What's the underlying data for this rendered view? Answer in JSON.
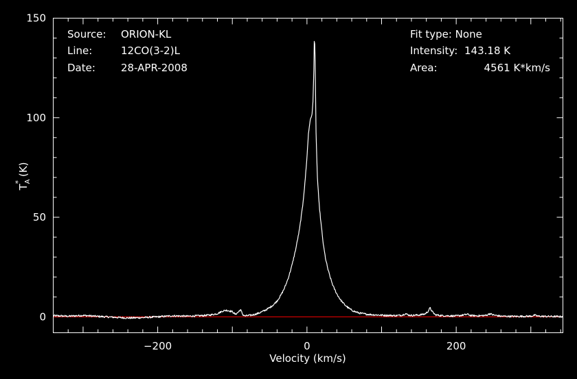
{
  "header": {
    "source_label": "Source:",
    "source_value": "ORION-KL",
    "line_label": "Line:",
    "line_value": "12CO(3-2)L",
    "date_label": "Date:",
    "date_value": "28-APR-2008",
    "fit_type": "Fit type: None",
    "intensity_label": "Intensity:",
    "intensity_value": "143.18 K",
    "area_label": "Area:",
    "area_value": "4561 K*km/s"
  },
  "colors": {
    "background": "#000000",
    "axes": "#ffffff",
    "spectrum": "#ffffff",
    "baseline": "#ff0000"
  },
  "chart_data": {
    "type": "line",
    "title": "",
    "xlabel": "Velocity (km/s)",
    "ylabel_main": "T",
    "ylabel_sup": "*",
    "ylabel_sub": "A",
    "ylabel_unit": "(K)",
    "xlim": [
      -340,
      343
    ],
    "ylim": [
      -8,
      150
    ],
    "x_ticks": [
      -200,
      0,
      200
    ],
    "x_tick_labels": [
      "−200",
      "0",
      "200"
    ],
    "y_ticks": [
      0,
      50,
      100,
      150
    ],
    "y_tick_labels": [
      "0",
      "50",
      "100",
      "150"
    ],
    "grid": false,
    "baseline_value": 0,
    "series": [
      {
        "x": [
          -340,
          -320,
          -300,
          -280,
          -260,
          -240,
          -220,
          -200,
          -180,
          -160,
          -140,
          -130,
          -120,
          -113,
          -108,
          -104,
          -100,
          -96,
          -92,
          -89,
          -86,
          -83,
          -80,
          -75,
          -70,
          -65,
          -60,
          -55,
          -50,
          -45,
          -40,
          -35,
          -30,
          -25,
          -20,
          -15,
          -10,
          -6,
          -3,
          0,
          2,
          4,
          6,
          7,
          8,
          9,
          10,
          11,
          12,
          13,
          14,
          16,
          18,
          20,
          22,
          25,
          28,
          31,
          35,
          40,
          45,
          50,
          55,
          60,
          65,
          70,
          80,
          90,
          100,
          110,
          120,
          128,
          132,
          136,
          140,
          150,
          158,
          162,
          165,
          168,
          172,
          180,
          200,
          210,
          215,
          220,
          230,
          240,
          245,
          250,
          260,
          280,
          300,
          305,
          310,
          320,
          343
        ],
        "y": [
          0.6,
          0.3,
          0.7,
          0.2,
          -0.2,
          -0.6,
          -0.4,
          0.0,
          0.5,
          0.3,
          0.6,
          0.9,
          1.6,
          2.9,
          3.3,
          3.0,
          2.6,
          1.2,
          2.4,
          3.6,
          1.1,
          0.4,
          0.6,
          0.8,
          1.2,
          1.8,
          2.6,
          3.5,
          4.6,
          6.0,
          8.0,
          10.8,
          14.5,
          19.5,
          26.0,
          34.0,
          44.0,
          55.0,
          66.0,
          80.0,
          92.0,
          98.0,
          101.0,
          102.0,
          108.0,
          120.0,
          143.18,
          128.0,
          95.0,
          82.0,
          70.0,
          58.0,
          50.0,
          43.0,
          36.0,
          29.0,
          24.0,
          20.0,
          15.5,
          11.5,
          8.5,
          6.3,
          4.6,
          3.3,
          2.5,
          1.9,
          1.3,
          1.0,
          0.8,
          0.7,
          0.6,
          0.9,
          1.6,
          0.9,
          0.7,
          0.9,
          1.4,
          2.6,
          4.5,
          2.5,
          1.0,
          0.6,
          0.4,
          0.9,
          1.3,
          0.6,
          0.5,
          0.7,
          1.6,
          0.9,
          0.3,
          0.2,
          0.3,
          0.8,
          0.3,
          0.2,
          0.1
        ]
      }
    ]
  }
}
